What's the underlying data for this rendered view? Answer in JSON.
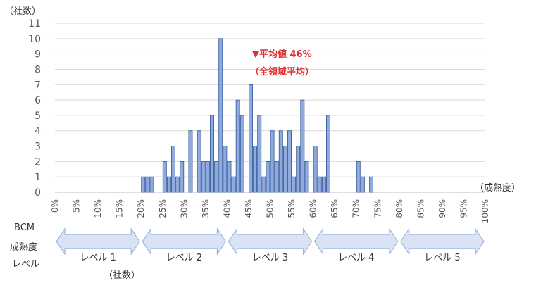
{
  "chart_data": {
    "type": "bar",
    "y_unit_label": "（社数）",
    "x_unit_label": "（成熟度）",
    "ylim": [
      0,
      11
    ],
    "yticks": [
      0,
      1,
      2,
      3,
      4,
      5,
      6,
      7,
      8,
      9,
      10,
      11
    ],
    "xlim_percent": [
      0,
      100
    ],
    "xtick_labels": [
      "0%",
      "5%",
      "10%",
      "15%",
      "20%",
      "25%",
      "30%",
      "35%",
      "40%",
      "45%",
      "50%",
      "55%",
      "60%",
      "65%",
      "70%",
      "75%",
      "80%",
      "85%",
      "90%",
      "95%",
      "100%"
    ],
    "bar_width_percent": 1,
    "grid": true,
    "bar_color": "#8faadc",
    "bar_edge_color": "#2f5597",
    "x": [
      20,
      21,
      22,
      25,
      26,
      27,
      28,
      29,
      31,
      33,
      34,
      35,
      36,
      37,
      38,
      39,
      40,
      41,
      42,
      43,
      45,
      46,
      47,
      48,
      49,
      50,
      51,
      52,
      53,
      54,
      55,
      56,
      57,
      58,
      60,
      61,
      62,
      63,
      70,
      71,
      73
    ],
    "values": [
      1,
      1,
      1,
      2,
      1,
      3,
      1,
      2,
      4,
      4,
      2,
      2,
      5,
      2,
      10,
      3,
      2,
      1,
      6,
      5,
      7,
      3,
      5,
      1,
      2,
      4,
      2,
      4,
      3,
      4,
      1,
      3,
      6,
      2,
      3,
      1,
      1,
      5,
      2,
      1,
      1
    ],
    "annotations": [
      {
        "text": "▼平均値 46%",
        "x": 46,
        "color": "#e03131"
      },
      {
        "text": "（全領域平均）",
        "x": 46,
        "color": "#e03131"
      }
    ]
  },
  "maturity": {
    "row_label": [
      "BCM",
      "成熟度",
      "レベル"
    ],
    "levels": [
      {
        "label": "レベル 1",
        "from": 0,
        "to": 20
      },
      {
        "label": "レベル 2",
        "from": 20,
        "to": 40
      },
      {
        "label": "レベル 3",
        "from": 40,
        "to": 60
      },
      {
        "label": "レベル 4",
        "from": 60,
        "to": 80
      },
      {
        "label": "レベル 5",
        "from": 80,
        "to": 100
      }
    ],
    "bottom_note": "（社数）"
  },
  "colors": {
    "arrow_fill": "#dae3f3",
    "arrow_stroke": "#8faadc",
    "grid": "#d9d9d9"
  }
}
